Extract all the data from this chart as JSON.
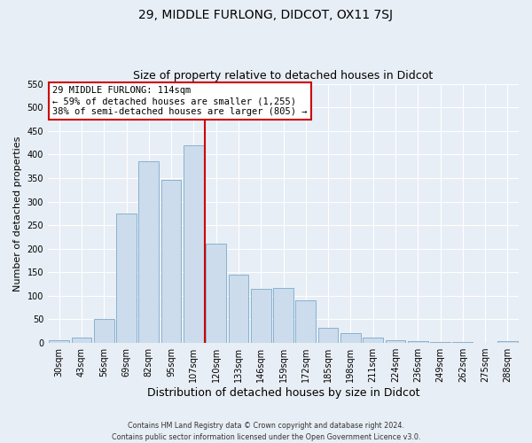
{
  "title": "29, MIDDLE FURLONG, DIDCOT, OX11 7SJ",
  "subtitle": "Size of property relative to detached houses in Didcot",
  "xlabel": "Distribution of detached houses by size in Didcot",
  "ylabel": "Number of detached properties",
  "categories": [
    "30sqm",
    "43sqm",
    "56sqm",
    "69sqm",
    "82sqm",
    "95sqm",
    "107sqm",
    "120sqm",
    "133sqm",
    "146sqm",
    "159sqm",
    "172sqm",
    "185sqm",
    "198sqm",
    "211sqm",
    "224sqm",
    "236sqm",
    "249sqm",
    "262sqm",
    "275sqm",
    "288sqm"
  ],
  "values": [
    5,
    12,
    50,
    275,
    385,
    347,
    420,
    210,
    145,
    115,
    117,
    90,
    32,
    21,
    12,
    5,
    4,
    2,
    2,
    1,
    4
  ],
  "bar_color": "#ccdcec",
  "bar_edge_color": "#7aaacb",
  "vline_x_index": 6.5,
  "vline_color": "#cc0000",
  "ylim": [
    0,
    550
  ],
  "yticks": [
    0,
    50,
    100,
    150,
    200,
    250,
    300,
    350,
    400,
    450,
    500,
    550
  ],
  "annotation_title": "29 MIDDLE FURLONG: 114sqm",
  "annotation_line1": "← 59% of detached houses are smaller (1,255)",
  "annotation_line2": "38% of semi-detached houses are larger (805) →",
  "annotation_box_color": "#cc0000",
  "footer_line1": "Contains HM Land Registry data © Crown copyright and database right 2024.",
  "footer_line2": "Contains public sector information licensed under the Open Government Licence v3.0.",
  "bg_color": "#e8eef5",
  "grid_color": "#ffffff",
  "title_fontsize": 10,
  "subtitle_fontsize": 9,
  "xlabel_fontsize": 9,
  "ylabel_fontsize": 8,
  "tick_fontsize": 7,
  "annotation_fontsize": 7.5,
  "footer_fontsize": 5.8
}
